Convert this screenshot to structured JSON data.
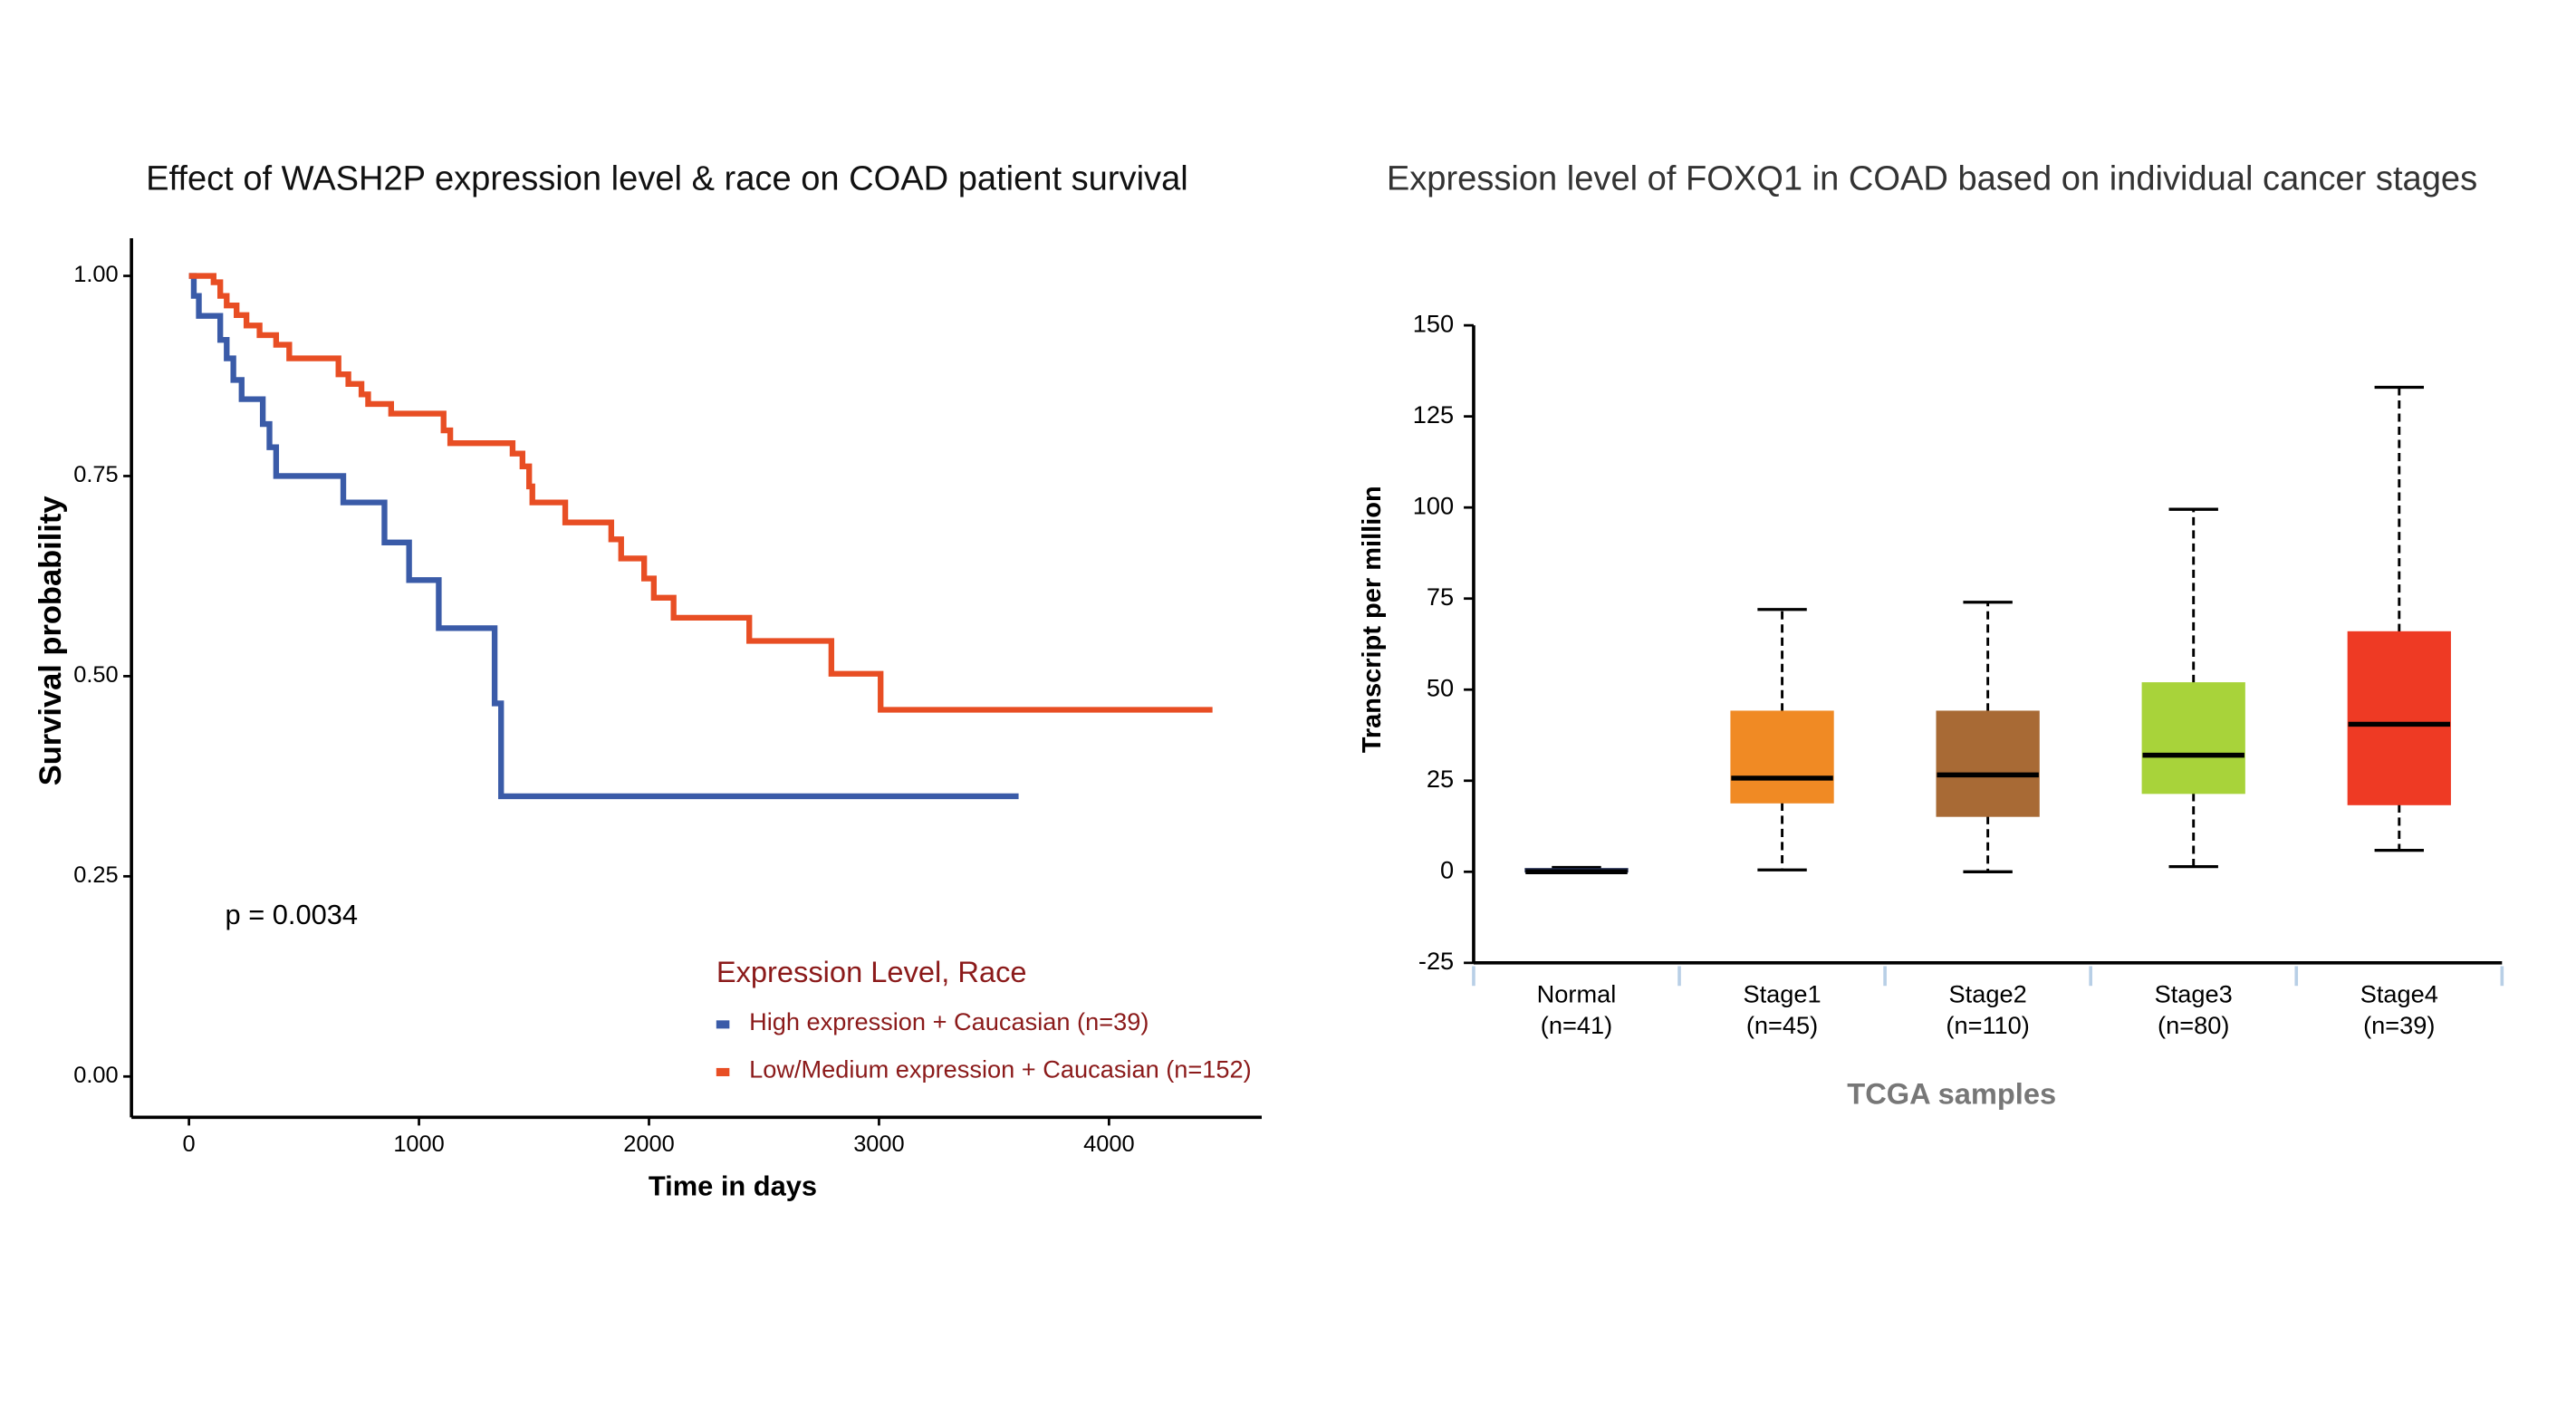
{
  "chart_data": [
    {
      "type": "step",
      "title": "Effect of WASH2P expression level & race on COAD patient survival",
      "x_label": "Time in days",
      "y_label": "Survival probability",
      "annotation": "p = 0.0034",
      "legend_title": "Expression Level, Race",
      "xlim": [
        -250,
        4664
      ],
      "ylim": [
        -0.051,
        1.047
      ],
      "xticks": [
        0,
        1000,
        2000,
        3000,
        4000
      ],
      "yticks": [
        {
          "value": 0,
          "label": "0.00"
        },
        {
          "value": 0.25,
          "label": "0.25"
        },
        {
          "value": 0.5,
          "label": "0.50"
        },
        {
          "value": 0.75,
          "label": "0.75"
        },
        {
          "value": 1,
          "label": "1.00"
        }
      ],
      "series": [
        {
          "name": "High expression + Caucasian (n=39)",
          "color": "#3a5ba8",
          "x": [
            0,
            21,
            43,
            136,
            164,
            193,
            229,
            321,
            350,
            379,
            671,
            850,
            957,
            1086,
            1329,
            1357,
            3607
          ],
          "values": [
            1,
            0.975,
            0.95,
            0.92,
            0.897,
            0.87,
            0.846,
            0.815,
            0.786,
            0.75,
            0.717,
            0.667,
            0.62,
            0.56,
            0.466,
            0.35,
            0.35
          ]
        },
        {
          "name": "Low/Medium expression + Caucasian (n=152)",
          "color": "#e84e24",
          "x": [
            0,
            107,
            136,
            164,
            207,
            250,
            307,
            379,
            436,
            650,
            693,
            750,
            779,
            879,
            1107,
            1136,
            1407,
            1450,
            1479,
            1493,
            1636,
            1836,
            1879,
            1979,
            2021,
            2107,
            2436,
            2793,
            3007,
            4450
          ],
          "values": [
            1,
            0.992,
            0.975,
            0.963,
            0.951,
            0.938,
            0.926,
            0.914,
            0.897,
            0.877,
            0.865,
            0.852,
            0.84,
            0.828,
            0.807,
            0.791,
            0.778,
            0.762,
            0.737,
            0.717,
            0.692,
            0.671,
            0.647,
            0.622,
            0.598,
            0.573,
            0.544,
            0.503,
            0.458,
            0.458
          ]
        }
      ]
    },
    {
      "type": "box",
      "title": "Expression level of FOXQ1 in COAD based on individual cancer stages",
      "x_label": "TCGA samples",
      "y_label": "Transcript per million",
      "ylim": [
        -25,
        150
      ],
      "yticks": [
        -25,
        0,
        25,
        50,
        75,
        100,
        125,
        150
      ],
      "categories": [
        "Normal",
        "Stage1",
        "Stage2",
        "Stage3",
        "Stage4"
      ],
      "sample_labels": [
        "(n=41)",
        "(n=45)",
        "(n=110)",
        "(n=80)",
        "(n=39)"
      ],
      "boxes": [
        {
          "min": 0,
          "q1": 0,
          "median": 0,
          "q3": 0.8,
          "max": 1.2,
          "color": "#1f2a4f"
        },
        {
          "min": 0.5,
          "q1": 19,
          "median": 25.7,
          "q3": 44,
          "max": 72,
          "color": "#f08a24"
        },
        {
          "min": 0,
          "q1": 15.3,
          "median": 26.6,
          "q3": 44,
          "max": 74,
          "color": "#a86a35"
        },
        {
          "min": 1.4,
          "q1": 21.6,
          "median": 32,
          "q3": 51.8,
          "max": 99.5,
          "color": "#a8d33a"
        },
        {
          "min": 5.9,
          "q1": 18.5,
          "median": 40.5,
          "q3": 65.8,
          "max": 133,
          "color": "#ee3a24"
        }
      ]
    }
  ]
}
